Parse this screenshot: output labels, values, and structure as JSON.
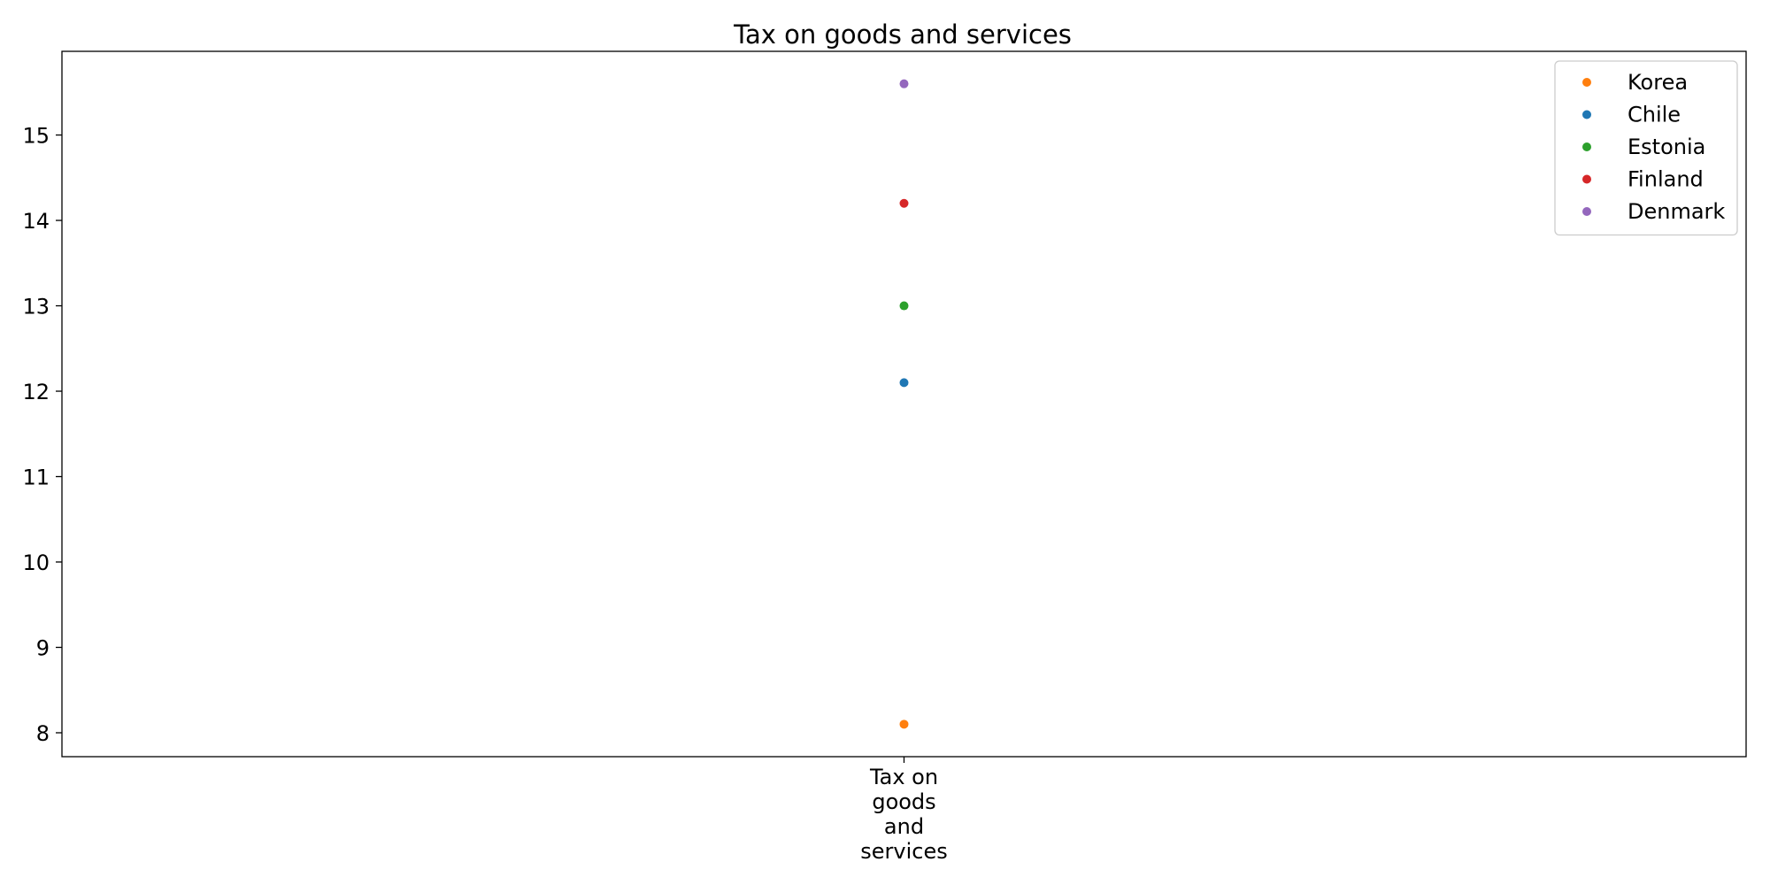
{
  "chart_data": {
    "type": "scatter",
    "title": "Tax on goods and services",
    "xlabel": "",
    "ylabel": "",
    "categories": [
      "Tax on goods and services"
    ],
    "category_label_lines": [
      "Tax on",
      "goods",
      "and",
      "services"
    ],
    "ylim": [
      7.72,
      15.98
    ],
    "yticks": [
      8,
      9,
      10,
      11,
      12,
      13,
      14,
      15
    ],
    "grid": false,
    "legend_position": "top-right",
    "series": [
      {
        "name": "Korea",
        "color": "#ff7f0e",
        "values": [
          8.1
        ]
      },
      {
        "name": "Chile",
        "color": "#1f77b4",
        "values": [
          12.1
        ]
      },
      {
        "name": "Estonia",
        "color": "#2ca02c",
        "values": [
          13.0
        ]
      },
      {
        "name": "Finland",
        "color": "#d62728",
        "values": [
          14.2
        ]
      },
      {
        "name": "Denmark",
        "color": "#9467bd",
        "values": [
          15.6
        ]
      }
    ]
  }
}
